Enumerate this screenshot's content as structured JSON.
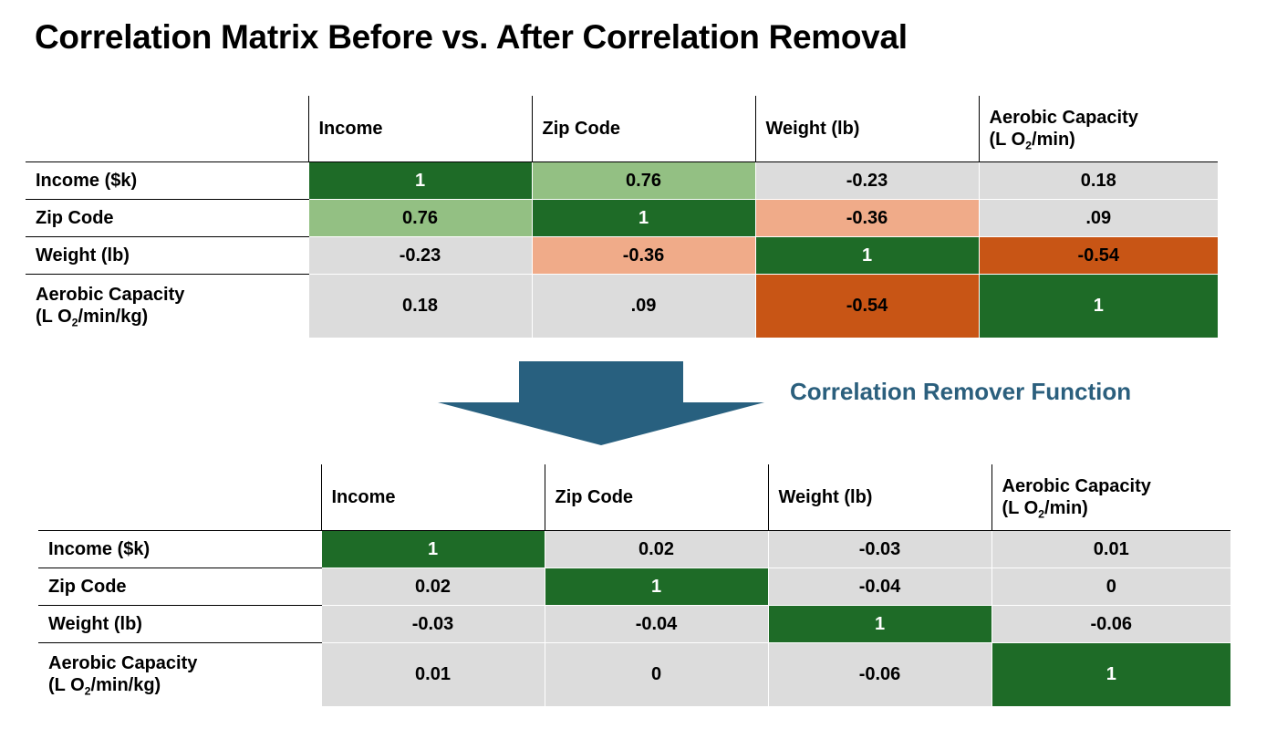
{
  "title": "Correlation Matrix Before vs. After Correlation Removal",
  "transition_label": "Correlation Remover Function",
  "colors": {
    "dark_green": "#1e6b27",
    "light_green": "#93c083",
    "light_gray": "#dcdcdc",
    "salmon": "#f0ab89",
    "burnt_orange": "#c85515",
    "arrow": "#28607f",
    "label_blue": "#2b5f7d"
  },
  "column_headers": [
    {
      "text": "Income"
    },
    {
      "text": "Zip Code"
    },
    {
      "text": "Weight (lb)"
    },
    {
      "text_main": "Aerobic Capacity",
      "text_pre": "(L O",
      "text_sub": "2",
      "text_post": "/min)"
    }
  ],
  "row_headers": [
    {
      "text": "Income ($k)"
    },
    {
      "text": "Zip Code"
    },
    {
      "text": "Weight (lb)"
    },
    {
      "text_main": "Aerobic Capacity",
      "text_pre": "(L O",
      "text_sub": "2",
      "text_post": "/min/kg)"
    }
  ],
  "before": {
    "values": [
      [
        "1",
        "0.76",
        "-0.23",
        "0.18"
      ],
      [
        "0.76",
        "1",
        "-0.36",
        ".09"
      ],
      [
        "-0.23",
        "-0.36",
        "1",
        "-0.54"
      ],
      [
        "0.18",
        ".09",
        "-0.54",
        "1"
      ]
    ],
    "fills": [
      [
        "dark_green",
        "light_green",
        "light_gray",
        "light_gray"
      ],
      [
        "light_green",
        "dark_green",
        "salmon",
        "light_gray"
      ],
      [
        "light_gray",
        "salmon",
        "dark_green",
        "burnt_orange"
      ],
      [
        "light_gray",
        "light_gray",
        "burnt_orange",
        "dark_green"
      ]
    ]
  },
  "after": {
    "values": [
      [
        "1",
        "0.02",
        "-0.03",
        "0.01"
      ],
      [
        "0.02",
        "1",
        "-0.04",
        "0"
      ],
      [
        "-0.03",
        "-0.04",
        "1",
        "-0.06"
      ],
      [
        "0.01",
        "0",
        "-0.06",
        "1"
      ]
    ],
    "fills": [
      [
        "dark_green",
        "light_gray",
        "light_gray",
        "light_gray"
      ],
      [
        "light_gray",
        "dark_green",
        "light_gray",
        "light_gray"
      ],
      [
        "light_gray",
        "light_gray",
        "dark_green",
        "light_gray"
      ],
      [
        "light_gray",
        "light_gray",
        "light_gray",
        "dark_green"
      ]
    ]
  }
}
